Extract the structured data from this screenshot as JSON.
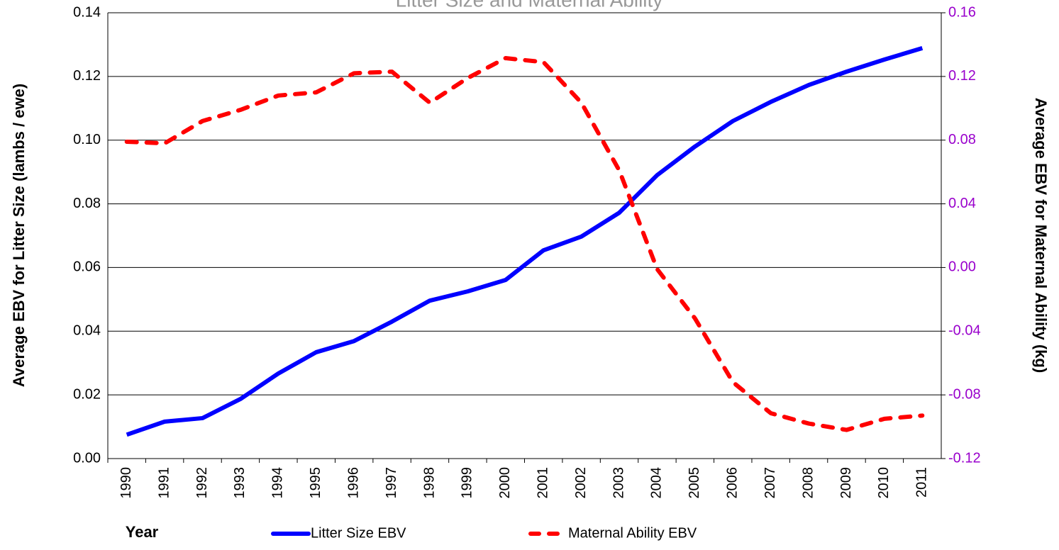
{
  "chart_data": {
    "type": "line",
    "title": "Litter Size and Maternal Ability",
    "x_label": "Year",
    "y_label": "Average EBV for Litter Size (lambs / ewe)",
    "y2_label": "Average EBV for Maternal Ability (kg)",
    "categories": [
      "1990",
      "1991",
      "1992",
      "1993",
      "1994",
      "1995",
      "1996",
      "1997",
      "1998",
      "1999",
      "2000",
      "2001",
      "2002",
      "2003",
      "2004",
      "2005",
      "2006",
      "2007",
      "2008",
      "2009",
      "2010",
      "2011"
    ],
    "series": [
      {
        "name": "Litter Size EBV",
        "color": "#0000ff",
        "dash": false,
        "values": [
          0.0075,
          0.0116,
          0.0127,
          0.0187,
          0.0267,
          0.0334,
          0.0369,
          0.043,
          0.0496,
          0.0525,
          0.0561,
          0.0654,
          0.0697,
          0.0772,
          0.089,
          0.098,
          0.106,
          0.112,
          0.1173,
          0.1215,
          0.1253,
          0.1289
        ]
      },
      {
        "name": "Maternal Ability EBV",
        "color": "#ff0000",
        "dash": true,
        "axis": "y2",
        "values": [
          0.079,
          0.078,
          0.092,
          0.099,
          0.108,
          0.11,
          0.122,
          0.123,
          0.1035,
          0.119,
          0.1315,
          0.129,
          0.1035,
          0.061,
          -0.001,
          -0.032,
          -0.072,
          -0.0915,
          -0.098,
          -0.102,
          -0.095,
          -0.093
        ]
      }
    ],
    "ylim": [
      0,
      0.14
    ],
    "yticks": [
      {
        "value": 0,
        "label": "0.00"
      },
      0.02,
      0.04,
      0.06,
      0.08,
      {
        "value": 0.1,
        "label": "0.10"
      },
      0.12,
      0.14
    ],
    "y2lim": [
      -0.12,
      0.16
    ],
    "y2ticks": [
      -0.12,
      -0.08,
      -0.04,
      {
        "value": 0,
        "label": "0.00"
      },
      0.04,
      0.08,
      0.12,
      0.16
    ],
    "y2_color": "#9900cc",
    "grid": true,
    "legend": "bottom"
  }
}
